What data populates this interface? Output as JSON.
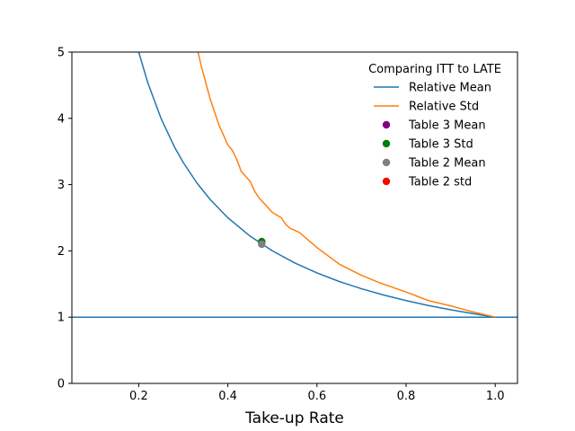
{
  "chart_data": {
    "type": "line",
    "title": "",
    "xlabel": "Take-up Rate",
    "ylabel": "",
    "xlim": [
      0.05,
      1.05
    ],
    "ylim": [
      0,
      5
    ],
    "xticks": [
      0.2,
      0.4,
      0.6,
      0.8,
      1.0
    ],
    "xtick_labels": [
      "0.2",
      "0.4",
      "0.6",
      "0.8",
      "1.0"
    ],
    "yticks": [
      0,
      1,
      2,
      3,
      4,
      5
    ],
    "ytick_labels": [
      "0",
      "1",
      "2",
      "3",
      "4",
      "5"
    ],
    "grid": false,
    "legend": {
      "title": "Comparing ITT to LATE",
      "placement": "top-right"
    },
    "series": [
      {
        "name": "Relative Mean",
        "kind": "line",
        "color": "#1f77b4",
        "x": [
          0.2,
          0.22,
          0.25,
          0.28,
          0.3,
          0.33,
          0.36,
          0.4,
          0.45,
          0.5,
          0.55,
          0.6,
          0.65,
          0.7,
          0.75,
          0.8,
          0.85,
          0.9,
          0.95,
          1.0
        ],
        "y": [
          5.0,
          4.545,
          4.0,
          3.571,
          3.333,
          3.03,
          2.778,
          2.5,
          2.222,
          2.0,
          1.818,
          1.667,
          1.538,
          1.429,
          1.333,
          1.25,
          1.176,
          1.111,
          1.053,
          1.0
        ]
      },
      {
        "name": "Relative Std",
        "kind": "line",
        "color": "#ff7f0e",
        "x": [
          0.333,
          0.34,
          0.36,
          0.38,
          0.4,
          0.41,
          0.42,
          0.43,
          0.45,
          0.46,
          0.47,
          0.5,
          0.52,
          0.53,
          0.54,
          0.56,
          0.6,
          0.65,
          0.7,
          0.74,
          0.8,
          0.85,
          0.9,
          0.95,
          1.0
        ],
        "y": [
          5.0,
          4.8,
          4.3,
          3.9,
          3.6,
          3.52,
          3.38,
          3.2,
          3.05,
          2.9,
          2.8,
          2.58,
          2.5,
          2.4,
          2.34,
          2.28,
          2.05,
          1.8,
          1.63,
          1.52,
          1.38,
          1.25,
          1.17,
          1.08,
          1.0
        ]
      },
      {
        "name": "Table 3 Mean",
        "kind": "scatter",
        "color": "#800080",
        "x": [
          0.476
        ],
        "y": [
          2.13
        ]
      },
      {
        "name": "Table 3 Std",
        "kind": "scatter",
        "color": "#008000",
        "x": [
          0.476
        ],
        "y": [
          2.14
        ]
      },
      {
        "name": "Table 2 Mean",
        "kind": "scatter",
        "color": "#808080",
        "x": [
          0.476
        ],
        "y": [
          2.1
        ]
      },
      {
        "name": "Table 2 std",
        "kind": "scatter",
        "color": "#ff0000",
        "x": [],
        "y": []
      }
    ],
    "hlines": [
      {
        "y": 1.0,
        "color": "#1f77b4"
      }
    ]
  }
}
